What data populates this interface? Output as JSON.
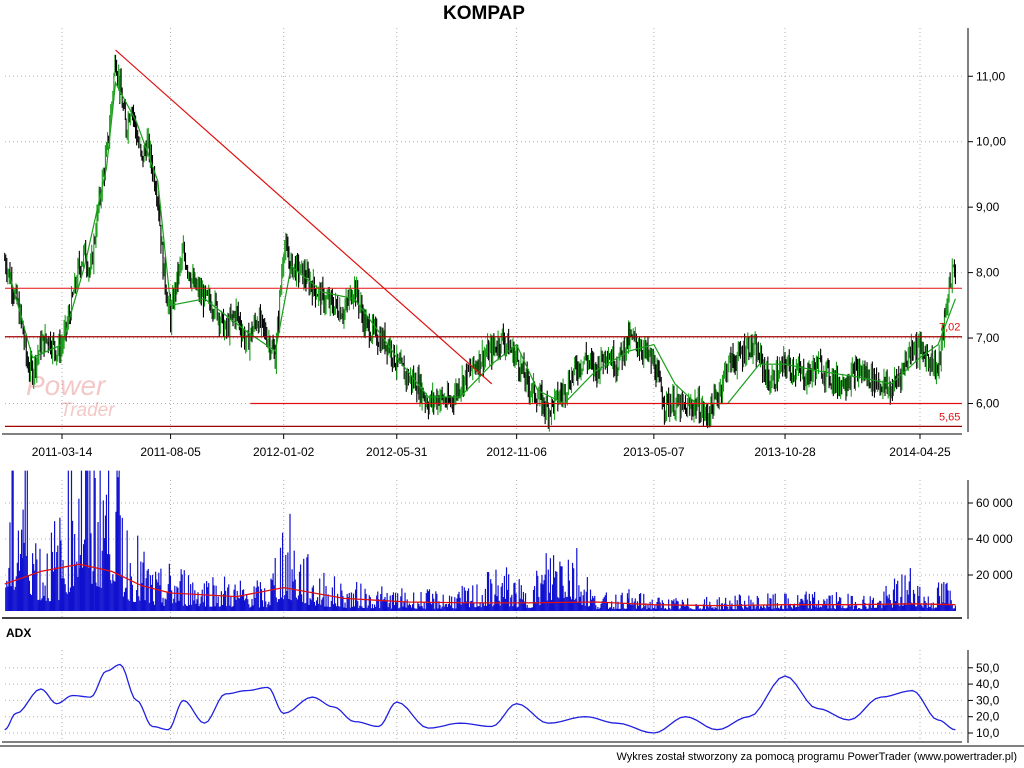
{
  "watermark": {
    "word1": "Power",
    "word2": "Trader",
    "color": "#d42020"
  },
  "footer": "Wykres został stworzony za pomocą programu PowerTrader (www.powertrader.pl)",
  "colors": {
    "up_bar": "#1a9e1a",
    "down_bar": "#000000",
    "moving_average": "#1a9e1a",
    "level_lines": "#e01010",
    "volume": "#1010d0",
    "volume_average": "#e01010",
    "adx": "#2020e0",
    "grid": "#b0b0b0"
  },
  "chart_data": [
    {
      "id": "price",
      "type": "line",
      "title": "KOMPAP",
      "x_tick_labels": [
        "2011-03-14",
        "2011-08-05",
        "2012-01-02",
        "2012-05-31",
        "2012-11-06",
        "2013-05-07",
        "2013-10-28",
        "2014-04-25"
      ],
      "y_tick_labels": [
        "6,00",
        "7,00",
        "8,00",
        "9,00",
        "10,00",
        "11,00"
      ],
      "ylim": [
        5.6,
        11.6
      ],
      "grid": true,
      "series": [
        {
          "name": "close",
          "style": "high-low bars",
          "x": [
            "2010-12-28",
            "2011-01-05",
            "2011-01-12",
            "2011-01-20",
            "2011-01-27",
            "2011-02-03",
            "2011-02-14",
            "2011-02-24",
            "2011-03-07",
            "2011-03-14",
            "2011-03-21",
            "2011-03-28",
            "2011-04-06",
            "2011-04-13",
            "2011-04-21",
            "2011-04-28",
            "2011-05-05",
            "2011-05-12",
            "2011-05-19",
            "2011-05-24",
            "2011-05-30",
            "2011-06-07",
            "2011-06-14",
            "2011-06-21",
            "2011-06-28",
            "2011-07-05",
            "2011-07-12",
            "2011-07-19",
            "2011-07-26",
            "2011-08-02",
            "2011-08-05",
            "2011-08-12",
            "2011-08-22",
            "2011-09-05",
            "2011-09-19",
            "2011-10-03",
            "2011-10-17",
            "2011-10-31",
            "2011-11-14",
            "2011-11-28",
            "2011-12-12",
            "2011-12-22",
            "2012-01-02",
            "2012-01-12",
            "2012-01-26",
            "2012-02-09",
            "2012-02-23",
            "2012-03-08",
            "2012-03-22",
            "2012-04-05",
            "2012-04-19",
            "2012-05-07",
            "2012-05-21",
            "2012-05-31",
            "2012-06-14",
            "2012-06-28",
            "2012-07-12",
            "2012-07-26",
            "2012-08-09",
            "2012-08-23",
            "2012-09-06",
            "2012-09-20",
            "2012-10-04",
            "2012-10-18",
            "2012-11-06",
            "2012-11-20",
            "2012-12-04",
            "2012-12-18",
            "2013-01-08",
            "2013-01-22",
            "2013-02-05",
            "2013-02-19",
            "2013-03-05",
            "2013-03-19",
            "2013-04-04",
            "2013-04-18",
            "2013-05-07",
            "2013-05-21",
            "2013-06-04",
            "2013-06-18",
            "2013-07-02",
            "2013-07-16",
            "2013-07-30",
            "2013-08-13",
            "2013-08-27",
            "2013-09-10",
            "2013-09-24",
            "2013-10-08",
            "2013-10-28",
            "2013-11-12",
            "2013-11-26",
            "2013-12-10",
            "2014-01-07",
            "2014-01-21",
            "2014-02-04",
            "2014-02-18",
            "2014-03-04",
            "2014-03-18",
            "2014-04-01",
            "2014-04-15",
            "2014-04-25",
            "2014-05-07",
            "2014-05-19",
            "2014-05-28",
            "2014-06-04",
            "2014-06-11"
          ],
          "values": [
            8.2,
            7.9,
            7.6,
            7.2,
            6.6,
            6.5,
            6.9,
            7.0,
            6.8,
            6.9,
            7.2,
            7.6,
            8.1,
            8.3,
            8.0,
            8.7,
            9.3,
            9.8,
            10.6,
            11.3,
            10.8,
            10.2,
            10.6,
            10.1,
            9.7,
            10.0,
            9.6,
            9.2,
            8.1,
            7.5,
            7.3,
            7.8,
            8.3,
            7.8,
            7.6,
            7.5,
            7.1,
            7.4,
            6.9,
            7.3,
            7.0,
            6.7,
            8.4,
            8.1,
            8.0,
            7.8,
            7.6,
            7.5,
            7.4,
            7.8,
            7.2,
            7.0,
            6.9,
            6.6,
            6.4,
            6.3,
            6.0,
            6.1,
            6.0,
            6.3,
            6.5,
            6.7,
            6.8,
            7.0,
            6.7,
            6.3,
            6.1,
            5.9,
            6.2,
            6.5,
            6.7,
            6.5,
            6.8,
            6.6,
            7.0,
            6.9,
            6.6,
            6.0,
            6.0,
            5.9,
            6.0,
            5.8,
            6.1,
            6.6,
            6.7,
            6.9,
            6.7,
            6.3,
            6.6,
            6.5,
            6.4,
            6.6,
            6.3,
            6.4,
            6.5,
            6.4,
            6.3,
            6.2,
            6.5,
            6.9,
            6.8,
            6.7,
            6.5,
            7.3,
            7.9,
            8.1
          ]
        },
        {
          "name": "moving average",
          "x": [
            "2011-01-05",
            "2011-02-03",
            "2011-03-14",
            "2011-04-13",
            "2011-05-12",
            "2011-05-24",
            "2011-06-21",
            "2011-07-19",
            "2011-08-05",
            "2011-09-19",
            "2011-11-14",
            "2011-12-22",
            "2012-01-12",
            "2012-02-23",
            "2012-04-05",
            "2012-05-07",
            "2012-05-31",
            "2012-07-12",
            "2012-08-23",
            "2012-10-04",
            "2012-11-06",
            "2012-12-04",
            "2013-01-08",
            "2013-02-19",
            "2013-04-04",
            "2013-05-07",
            "2013-06-04",
            "2013-07-02",
            "2013-08-13",
            "2013-09-24",
            "2013-10-28",
            "2013-12-10",
            "2014-02-04",
            "2014-03-18",
            "2014-04-25",
            "2014-05-19",
            "2014-06-11"
          ],
          "values": [
            7.9,
            6.7,
            6.9,
            8.1,
            9.6,
            10.9,
            10.3,
            9.4,
            7.5,
            7.6,
            7.1,
            6.8,
            8.1,
            7.7,
            7.6,
            7.1,
            6.7,
            6.1,
            6.1,
            6.6,
            6.9,
            6.2,
            6.0,
            6.5,
            6.8,
            6.9,
            6.3,
            6.0,
            6.0,
            6.6,
            6.6,
            6.5,
            6.4,
            6.3,
            6.7,
            6.9,
            7.6
          ]
        }
      ],
      "trend_line": {
        "from": [
          "2011-05-24",
          11.4
        ],
        "to": [
          "2012-10-04",
          6.3
        ]
      },
      "horizontal_levels": [
        7.76,
        7.02,
        6.0,
        5.65
      ],
      "level_labels": [
        "7,02",
        "5,65"
      ]
    },
    {
      "id": "volume",
      "type": "bar",
      "y_tick_labels": [
        "20 000",
        "40 000",
        "60 000"
      ],
      "ylim": [
        0,
        80000
      ],
      "grid": true,
      "series": [
        {
          "name": "volume",
          "x": [
            "2010-12-28",
            "2011-01-20",
            "2011-02-14",
            "2011-03-14",
            "2011-04-06",
            "2011-04-28",
            "2011-05-19",
            "2011-06-07",
            "2011-06-28",
            "2011-07-19",
            "2011-08-05",
            "2011-09-19",
            "2011-10-31",
            "2011-12-12",
            "2012-01-02",
            "2012-02-09",
            "2012-03-22",
            "2012-05-07",
            "2012-06-14",
            "2012-07-26",
            "2012-09-06",
            "2012-10-18",
            "2012-11-20",
            "2013-01-08",
            "2013-02-19",
            "2013-04-04",
            "2013-05-07",
            "2013-06-18",
            "2013-07-30",
            "2013-09-10",
            "2013-10-28",
            "2013-12-10",
            "2014-01-21",
            "2014-03-04",
            "2014-04-15",
            "2014-05-07",
            "2014-05-28",
            "2014-06-11"
          ],
          "values": [
            21000,
            52000,
            18000,
            25000,
            65000,
            46000,
            61000,
            24000,
            16000,
            9000,
            12000,
            10000,
            8000,
            7000,
            26000,
            11000,
            7000,
            6000,
            5000,
            5000,
            6000,
            12000,
            5000,
            26000,
            4000,
            5000,
            3500,
            3000,
            3500,
            4000,
            4000,
            5000,
            4000,
            4500,
            12000,
            4000,
            9000,
            4000
          ]
        },
        {
          "name": "volume average",
          "x": [
            "2010-12-28",
            "2011-02-14",
            "2011-04-06",
            "2011-05-19",
            "2011-06-28",
            "2011-08-05",
            "2011-10-31",
            "2012-01-02",
            "2012-03-22",
            "2012-06-14",
            "2012-09-06",
            "2012-11-20",
            "2013-02-19",
            "2013-05-07",
            "2013-07-30",
            "2013-10-28",
            "2014-01-21",
            "2014-04-15",
            "2014-06-11"
          ],
          "values": [
            15000,
            22000,
            26000,
            22000,
            14000,
            10000,
            8000,
            13000,
            7000,
            5000,
            4500,
            4500,
            5000,
            3500,
            3000,
            3500,
            3500,
            4000,
            3500
          ]
        }
      ]
    },
    {
      "id": "adx",
      "type": "line",
      "title": "ADX",
      "y_tick_labels": [
        "10,0",
        "20,0",
        "30,0",
        "40,0",
        "50,0"
      ],
      "ylim": [
        7,
        55
      ],
      "grid": true,
      "series": [
        {
          "name": "ADX",
          "x": [
            "2010-12-28",
            "2011-01-12",
            "2011-02-14",
            "2011-03-07",
            "2011-03-28",
            "2011-04-21",
            "2011-05-12",
            "2011-05-30",
            "2011-06-21",
            "2011-07-12",
            "2011-08-02",
            "2011-08-22",
            "2011-09-19",
            "2011-10-17",
            "2011-11-14",
            "2011-12-12",
            "2012-01-02",
            "2012-02-09",
            "2012-03-08",
            "2012-04-05",
            "2012-05-07",
            "2012-05-31",
            "2012-07-12",
            "2012-08-23",
            "2012-10-04",
            "2012-11-06",
            "2012-12-18",
            "2013-02-05",
            "2013-03-19",
            "2013-05-07",
            "2013-06-18",
            "2013-07-30",
            "2013-09-10",
            "2013-10-28",
            "2013-12-10",
            "2014-01-21",
            "2014-03-04",
            "2014-04-15",
            "2014-05-19",
            "2014-06-11"
          ],
          "values": [
            12,
            22,
            37,
            28,
            33,
            32,
            48,
            52,
            30,
            14,
            12,
            30,
            16,
            34,
            36,
            38,
            22,
            32,
            26,
            17,
            14,
            29,
            13,
            16,
            14,
            28,
            16,
            20,
            16,
            10,
            20,
            12,
            20,
            45,
            25,
            18,
            32,
            36,
            18,
            12
          ]
        }
      ]
    }
  ]
}
